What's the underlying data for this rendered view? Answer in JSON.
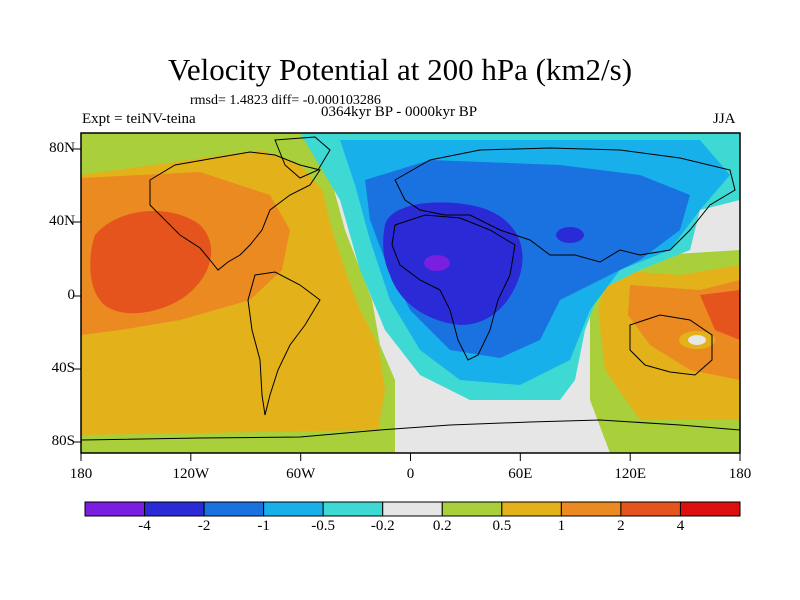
{
  "title": "Velocity Potential at 200 hPa (km2/s)",
  "stats": "rmsd= 1.4823 diff= -0.000103286",
  "experiment": "Expt = teiNV-teina",
  "period": "0364kyr BP - 0000kyr BP",
  "season": "JJA",
  "axes": {
    "x_ticks": [
      "180",
      "120W",
      "60W",
      "0",
      "60E",
      "120E",
      "180"
    ],
    "y_ticks": [
      "80N",
      "40N",
      "0",
      "40S",
      "80S"
    ]
  },
  "colorbar": {
    "labels": [
      "-4",
      "-2",
      "-1",
      "-0.5",
      "-0.2",
      "0.2",
      "0.5",
      "1",
      "2",
      "4"
    ],
    "colors": [
      "#7a1ee0",
      "#2a2ad6",
      "#1a72e0",
      "#18b0ea",
      "#3fd9d4",
      "#e6e6e6",
      "#a9cf3a",
      "#e3b21a",
      "#ea8a20",
      "#e5541c",
      "#dd1010"
    ]
  },
  "map_colors": {
    "ocean_neutral": "#e6e6e6",
    "coast": "#000000"
  }
}
